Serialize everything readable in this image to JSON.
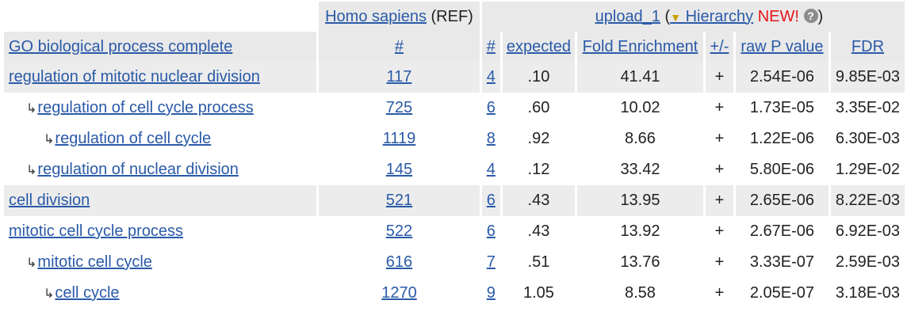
{
  "header": {
    "ref_species": "Homo sapiens",
    "ref_suffix": "(REF)",
    "upload_name": "upload_1",
    "open_paren": "(",
    "hierarchy_label": "Hierarchy",
    "new_label": "NEW!",
    "help_glyph": "?",
    "close_paren": ")"
  },
  "columns": {
    "term": "GO biological process complete",
    "ref_count": "#",
    "upload_count": "#",
    "expected": "expected",
    "fold": "Fold Enrichment",
    "direction": "+/-",
    "raw_p": "raw P value",
    "fdr": "FDR"
  },
  "rows": [
    {
      "term": "regulation of mitotic nuclear division",
      "level": 0,
      "ref": "117",
      "num": "4",
      "expected": ".10",
      "fold": "41.41",
      "dir": "+",
      "raw": "2.54E-06",
      "fdr": "9.85E-03"
    },
    {
      "term": "regulation of cell cycle process",
      "level": 1,
      "ref": "725",
      "num": "6",
      "expected": ".60",
      "fold": "10.02",
      "dir": "+",
      "raw": "1.73E-05",
      "fdr": "3.35E-02"
    },
    {
      "term": "regulation of cell cycle",
      "level": 2,
      "ref": "1119",
      "num": "8",
      "expected": ".92",
      "fold": "8.66",
      "dir": "+",
      "raw": "1.22E-06",
      "fdr": "6.30E-03"
    },
    {
      "term": "regulation of nuclear division",
      "level": 1,
      "ref": "145",
      "num": "4",
      "expected": ".12",
      "fold": "33.42",
      "dir": "+",
      "raw": "5.80E-06",
      "fdr": "1.29E-02"
    },
    {
      "term": "cell division",
      "level": 0,
      "ref": "521",
      "num": "6",
      "expected": ".43",
      "fold": "13.95",
      "dir": "+",
      "raw": "2.65E-06",
      "fdr": "8.22E-03"
    },
    {
      "term": "mitotic cell cycle process",
      "level": 0,
      "ref": "522",
      "num": "6",
      "expected": ".43",
      "fold": "13.92",
      "dir": "+",
      "raw": "2.67E-06",
      "fdr": "6.92E-03"
    },
    {
      "term": "mitotic cell cycle",
      "level": 1,
      "ref": "616",
      "num": "7",
      "expected": ".51",
      "fold": "13.76",
      "dir": "+",
      "raw": "3.33E-07",
      "fdr": "2.59E-03"
    },
    {
      "term": "cell cycle",
      "level": 2,
      "ref": "1270",
      "num": "9",
      "expected": "1.05",
      "fold": "8.58",
      "dir": "+",
      "raw": "2.05E-07",
      "fdr": "3.18E-03"
    }
  ],
  "icons": {
    "hierarchy_arrow": "↳",
    "hierarchy_toggle": "▼"
  }
}
